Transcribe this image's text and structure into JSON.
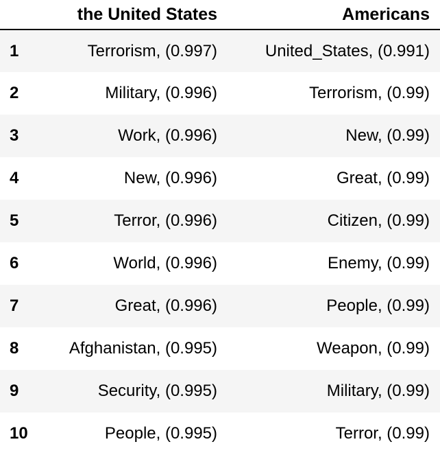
{
  "table": {
    "columns": [
      "the United States",
      "Americans"
    ],
    "rows": [
      {
        "index": "1",
        "cells": [
          "Terrorism, (0.997)",
          "United_States, (0.991)"
        ]
      },
      {
        "index": "2",
        "cells": [
          "Military, (0.996)",
          "Terrorism, (0.99)"
        ]
      },
      {
        "index": "3",
        "cells": [
          "Work, (0.996)",
          "New, (0.99)"
        ]
      },
      {
        "index": "4",
        "cells": [
          "New, (0.996)",
          "Great, (0.99)"
        ]
      },
      {
        "index": "5",
        "cells": [
          "Terror, (0.996)",
          "Citizen, (0.99)"
        ]
      },
      {
        "index": "6",
        "cells": [
          "World, (0.996)",
          "Enemy, (0.99)"
        ]
      },
      {
        "index": "7",
        "cells": [
          "Great, (0.996)",
          "People, (0.99)"
        ]
      },
      {
        "index": "8",
        "cells": [
          "Afghanistan, (0.995)",
          "Weapon, (0.99)"
        ]
      },
      {
        "index": "9",
        "cells": [
          "Security, (0.995)",
          "Military, (0.99)"
        ]
      },
      {
        "index": "10",
        "cells": [
          "People, (0.995)",
          "Terror, (0.99)"
        ]
      }
    ]
  },
  "colors": {
    "stripe": "#f5f5f5",
    "background": "#ffffff",
    "rule": "#000000"
  }
}
